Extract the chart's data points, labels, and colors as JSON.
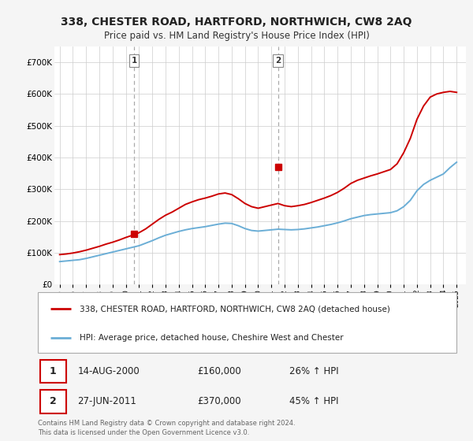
{
  "title": "338, CHESTER ROAD, HARTFORD, NORTHWICH, CW8 2AQ",
  "subtitle": "Price paid vs. HM Land Registry's House Price Index (HPI)",
  "legend_line1": "338, CHESTER ROAD, HARTFORD, NORTHWICH, CW8 2AQ (detached house)",
  "legend_line2": "HPI: Average price, detached house, Cheshire West and Chester",
  "footnote": "Contains HM Land Registry data © Crown copyright and database right 2024.\nThis data is licensed under the Open Government Licence v3.0.",
  "sale1_label": "1",
  "sale1_date": "14-AUG-2000",
  "sale1_price": "£160,000",
  "sale1_hpi": "26% ↑ HPI",
  "sale2_label": "2",
  "sale2_date": "27-JUN-2011",
  "sale2_price": "£370,000",
  "sale2_hpi": "45% ↑ HPI",
  "ylim": [
    0,
    750000
  ],
  "yticks": [
    0,
    100000,
    200000,
    300000,
    400000,
    500000,
    600000,
    700000
  ],
  "ytick_labels": [
    "£0",
    "£100K",
    "£200K",
    "£300K",
    "£400K",
    "£500K",
    "£600K",
    "£700K"
  ],
  "hpi_color": "#6baed6",
  "price_color": "#cc0000",
  "background_color": "#f5f5f5",
  "plot_bg_color": "#ffffff",
  "grid_color": "#cccccc",
  "marker1_x": 2000.625,
  "marker1_y": 160000,
  "marker2_x": 2011.5,
  "marker2_y": 370000,
  "xlim_left": 1994.6,
  "xlim_right": 2025.7,
  "hpi_xdata": [
    1995.0,
    1995.5,
    1996.0,
    1996.5,
    1997.0,
    1997.5,
    1998.0,
    1998.5,
    1999.0,
    1999.5,
    2000.0,
    2000.5,
    2001.0,
    2001.5,
    2002.0,
    2002.5,
    2003.0,
    2003.5,
    2004.0,
    2004.5,
    2005.0,
    2005.5,
    2006.0,
    2006.5,
    2007.0,
    2007.5,
    2008.0,
    2008.5,
    2009.0,
    2009.5,
    2010.0,
    2010.5,
    2011.0,
    2011.5,
    2012.0,
    2012.5,
    2013.0,
    2013.5,
    2014.0,
    2014.5,
    2015.0,
    2015.5,
    2016.0,
    2016.5,
    2017.0,
    2017.5,
    2018.0,
    2018.5,
    2019.0,
    2019.5,
    2020.0,
    2020.5,
    2021.0,
    2021.5,
    2022.0,
    2022.5,
    2023.0,
    2023.5,
    2024.0,
    2024.5,
    2025.0
  ],
  "hpi_ydata": [
    72000,
    74000,
    76000,
    78000,
    82000,
    87000,
    92000,
    97000,
    102000,
    107000,
    112000,
    117000,
    122000,
    130000,
    138000,
    147000,
    155000,
    161000,
    167000,
    172000,
    176000,
    179000,
    182000,
    186000,
    190000,
    193000,
    192000,
    185000,
    176000,
    170000,
    168000,
    170000,
    172000,
    174000,
    173000,
    172000,
    173000,
    175000,
    178000,
    181000,
    185000,
    189000,
    194000,
    200000,
    207000,
    212000,
    217000,
    220000,
    222000,
    224000,
    226000,
    232000,
    245000,
    265000,
    295000,
    315000,
    328000,
    338000,
    348000,
    368000,
    385000
  ],
  "price_xdata": [
    1995.0,
    1995.5,
    1996.0,
    1996.5,
    1997.0,
    1997.5,
    1998.0,
    1998.5,
    1999.0,
    1999.5,
    2000.0,
    2000.5,
    2001.0,
    2001.5,
    2002.0,
    2002.5,
    2003.0,
    2003.5,
    2004.0,
    2004.5,
    2005.0,
    2005.5,
    2006.0,
    2006.5,
    2007.0,
    2007.5,
    2008.0,
    2008.5,
    2009.0,
    2009.5,
    2010.0,
    2010.5,
    2011.0,
    2011.5,
    2012.0,
    2012.5,
    2013.0,
    2013.5,
    2014.0,
    2014.5,
    2015.0,
    2015.5,
    2016.0,
    2016.5,
    2017.0,
    2017.5,
    2018.0,
    2018.5,
    2019.0,
    2019.5,
    2020.0,
    2020.5,
    2021.0,
    2021.5,
    2022.0,
    2022.5,
    2023.0,
    2023.5,
    2024.0,
    2024.5,
    2025.0
  ],
  "price_ydata": [
    94000,
    96000,
    99000,
    103000,
    108000,
    114000,
    120000,
    127000,
    133000,
    140000,
    148000,
    155000,
    163000,
    175000,
    190000,
    205000,
    218000,
    228000,
    240000,
    252000,
    260000,
    267000,
    272000,
    278000,
    285000,
    288000,
    283000,
    270000,
    255000,
    245000,
    240000,
    245000,
    250000,
    255000,
    248000,
    245000,
    248000,
    252000,
    258000,
    265000,
    272000,
    280000,
    290000,
    303000,
    318000,
    328000,
    335000,
    342000,
    348000,
    355000,
    362000,
    380000,
    415000,
    460000,
    520000,
    562000,
    590000,
    600000,
    605000,
    608000,
    605000
  ]
}
